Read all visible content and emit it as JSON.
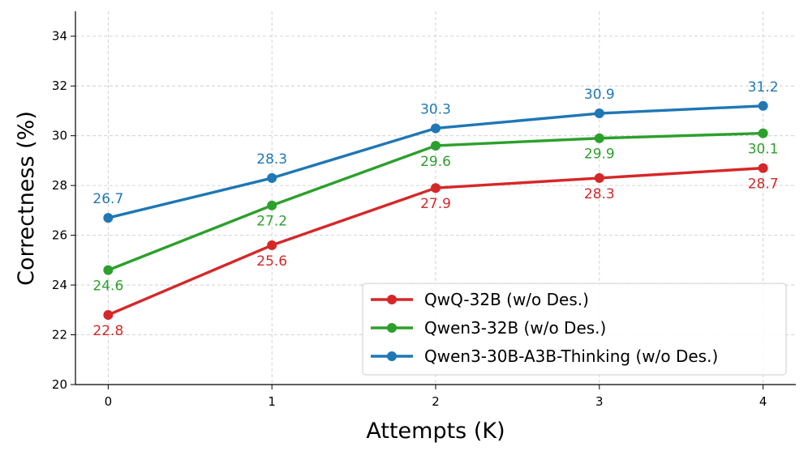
{
  "chart_data": {
    "type": "line",
    "title": "",
    "xlabel": "Attempts (K)",
    "ylabel": "Correctness (%)",
    "x": [
      0,
      1,
      2,
      3,
      4
    ],
    "x_tick_labels": [
      "0",
      "1",
      "2",
      "3",
      "4"
    ],
    "y_ticks": [
      20,
      22,
      24,
      26,
      28,
      30,
      32,
      34
    ],
    "y_tick_labels": [
      "20",
      "22",
      "24",
      "26",
      "28",
      "30",
      "32",
      "34"
    ],
    "xlim": [
      -0.2,
      4.2
    ],
    "ylim": [
      20,
      35
    ],
    "grid": true,
    "legend_position": "bottom-right",
    "series": [
      {
        "name": "QwQ-32B (w/o Des.)",
        "color": "#d62728",
        "values": [
          22.8,
          25.6,
          27.9,
          28.3,
          28.7
        ],
        "labels": [
          "22.8",
          "25.6",
          "27.9",
          "28.3",
          "28.7"
        ],
        "label_position": "below"
      },
      {
        "name": "Qwen3-32B (w/o Des.)",
        "color": "#2ca02c",
        "values": [
          24.6,
          27.2,
          29.6,
          29.9,
          30.1
        ],
        "labels": [
          "24.6",
          "27.2",
          "29.6",
          "29.9",
          "30.1"
        ],
        "label_position": "below"
      },
      {
        "name": "Qwen3-30B-A3B-Thinking (w/o Des.)",
        "color": "#1f77b4",
        "values": [
          26.7,
          28.3,
          30.3,
          30.9,
          31.2
        ],
        "labels": [
          "26.7",
          "28.3",
          "30.3",
          "30.9",
          "31.2"
        ],
        "label_position": "above"
      }
    ]
  }
}
